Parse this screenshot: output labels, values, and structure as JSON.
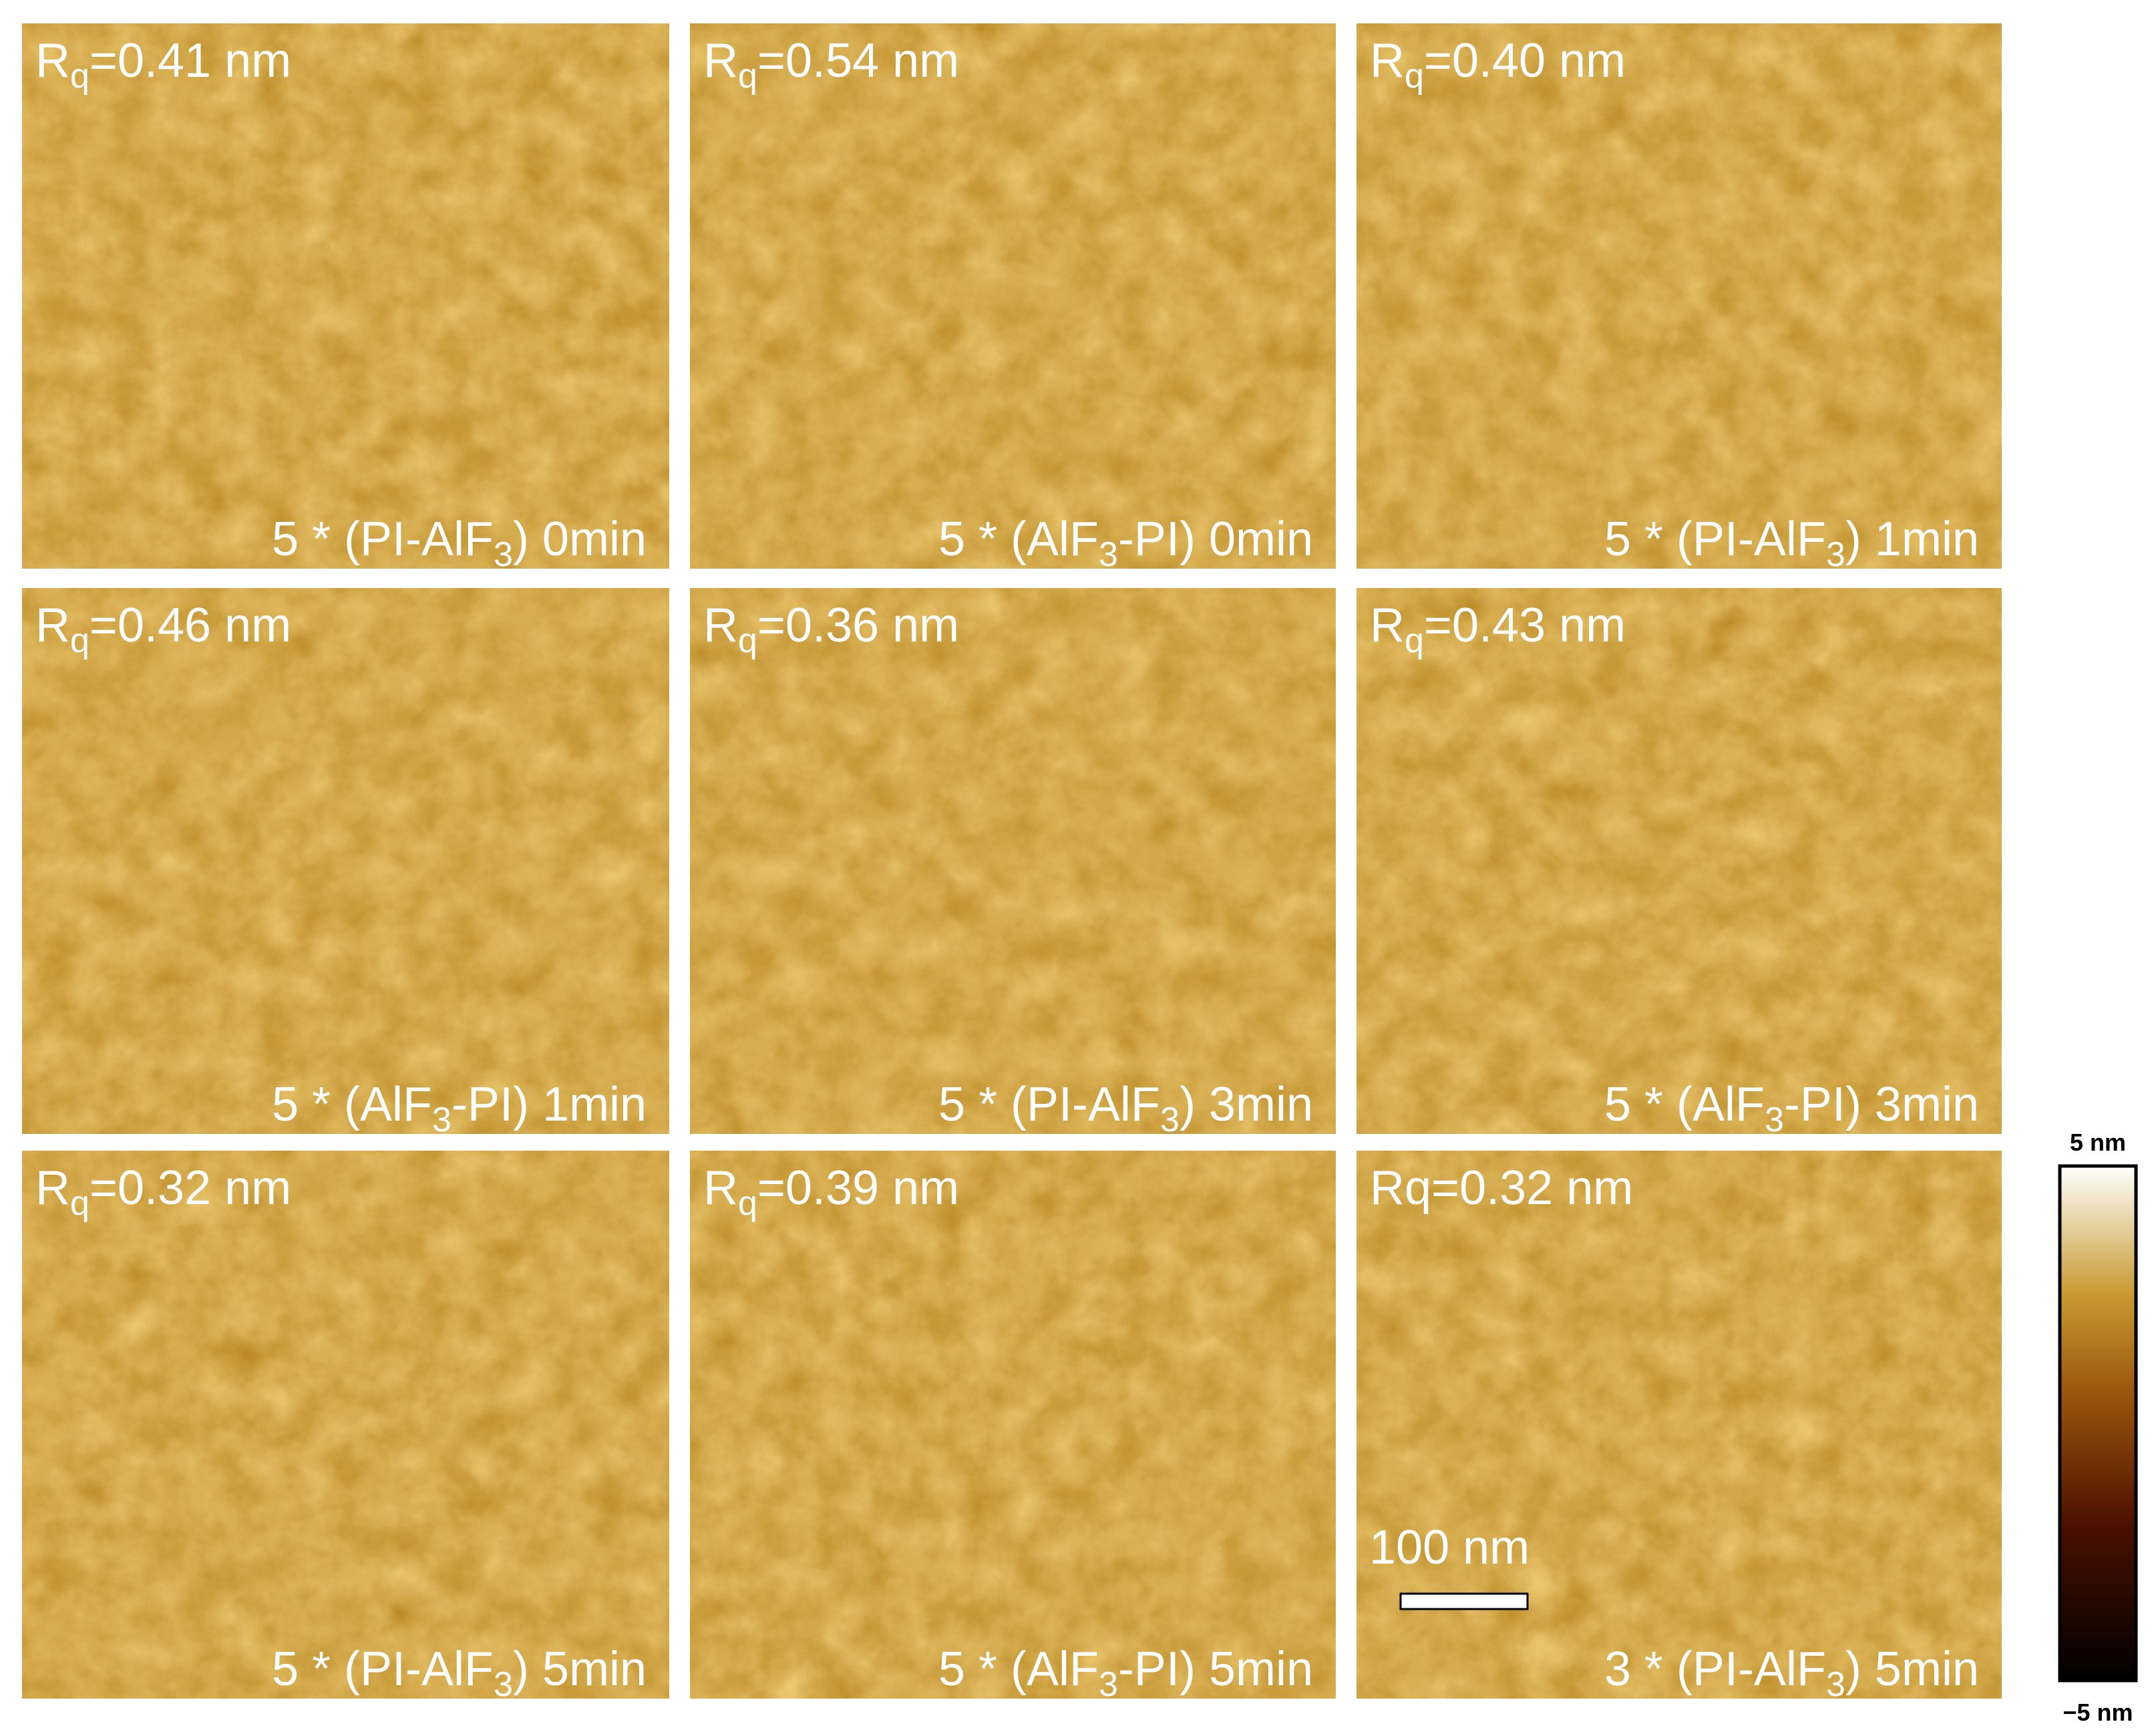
{
  "panels": [
    {
      "rq": {
        "before": "R",
        "sub": "q",
        "after": "=0.41 nm"
      },
      "label": {
        "before": "5 * (PI-AlF",
        "sub": "3",
        "after": ") 0min"
      }
    },
    {
      "rq": {
        "before": "R",
        "sub": "q",
        "after": "=0.54 nm"
      },
      "label": {
        "before": "5 * (AlF",
        "sub": "3",
        "after": "-PI) 0min"
      }
    },
    {
      "rq": {
        "before": "R",
        "sub": "q",
        "after": "=0.40 nm"
      },
      "label": {
        "before": "5 * (PI-AlF",
        "sub": "3",
        "after": ") 1min"
      }
    },
    {
      "rq": {
        "before": "R",
        "sub": "q",
        "after": "=0.46 nm"
      },
      "label": {
        "before": "5 * (AlF",
        "sub": "3",
        "after": "-PI) 1min"
      }
    },
    {
      "rq": {
        "before": "R",
        "sub": "q",
        "after": "=0.36 nm"
      },
      "label": {
        "before": "5 * (PI-AlF",
        "sub": "3",
        "after": ") 3min"
      }
    },
    {
      "rq": {
        "before": "R",
        "sub": "q",
        "after": "=0.43 nm"
      },
      "label": {
        "before": "5 * (AlF",
        "sub": "3",
        "after": "-PI) 3min"
      }
    },
    {
      "rq": {
        "before": "R",
        "sub": "q",
        "after": "=0.32 nm"
      },
      "label": {
        "before": "5 * (PI-AlF",
        "sub": "3",
        "after": ") 5min"
      }
    },
    {
      "rq": {
        "before": "R",
        "sub": "q",
        "after": "=0.39 nm"
      },
      "label": {
        "before": "5 * (AlF",
        "sub": "3",
        "after": "-PI) 5min"
      }
    },
    {
      "rq": {
        "before": "Rq=0.32 nm"
      },
      "label": {
        "before": "3 * (PI-AlF",
        "sub": "3",
        "after": ") 5min"
      }
    }
  ],
  "scale_bar": "100 nm",
  "colorbar": {
    "max": "5 nm",
    "min": "−5 nm"
  }
}
